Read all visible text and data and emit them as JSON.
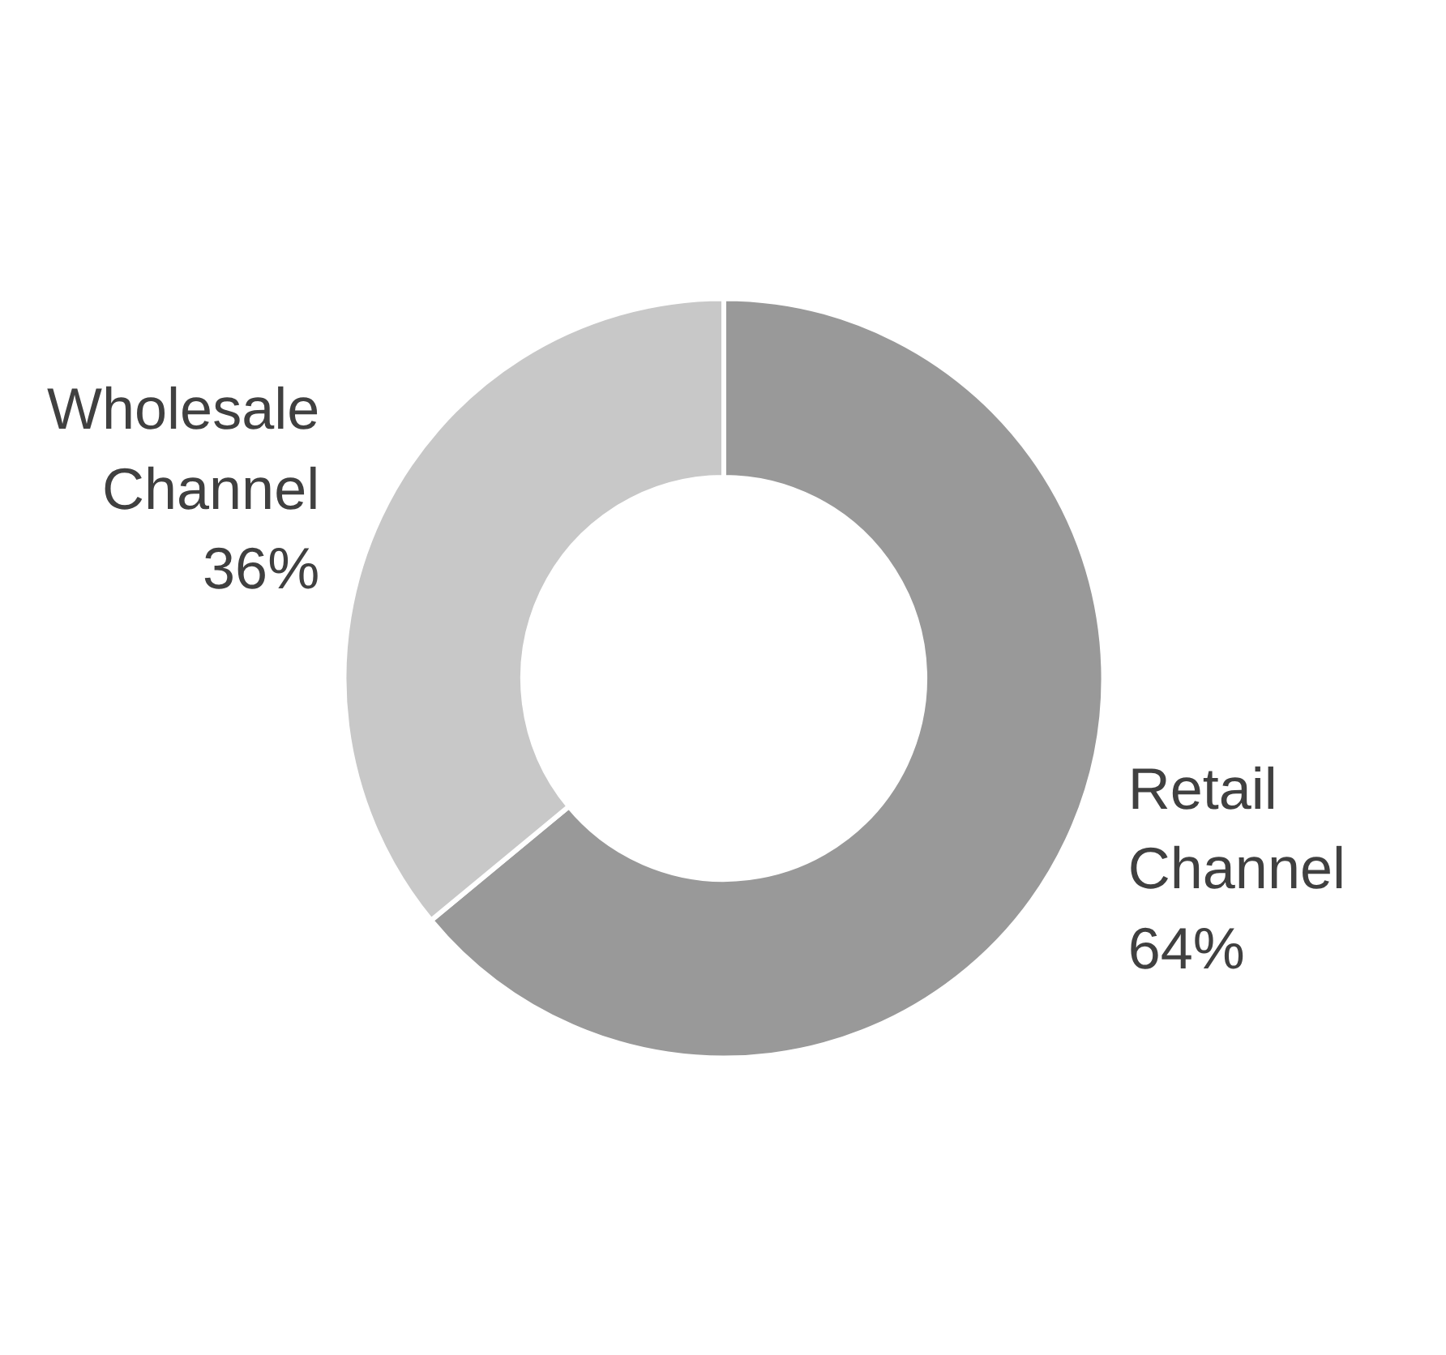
{
  "chart_data": {
    "type": "donut",
    "categories": [
      "Retail Channel",
      "Wholesale Channel"
    ],
    "values": [
      64,
      36
    ],
    "colors": [
      "#999999",
      "#c8c8c8"
    ],
    "value_labels": [
      "64%",
      "36%"
    ]
  }
}
